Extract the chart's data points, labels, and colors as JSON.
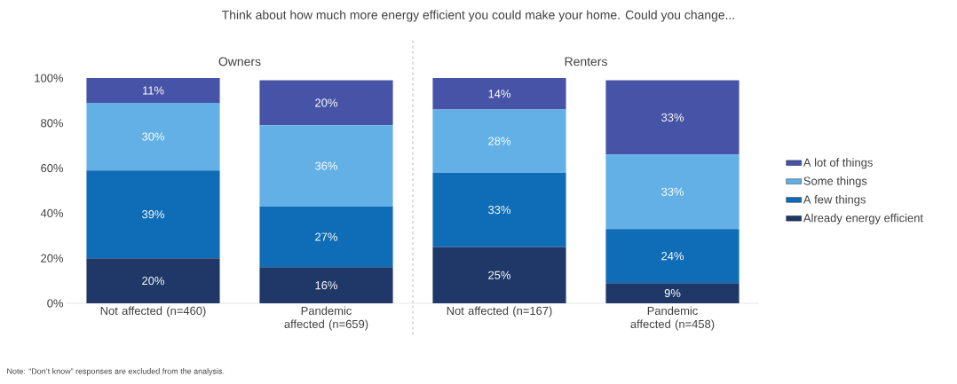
{
  "chart_data": {
    "type": "bar",
    "stacked": true,
    "title": "Think about how much more energy efficient you could make your home. Could you change...",
    "categories": [
      "Not affected (n=460)",
      "Pandemic affected (n=659)",
      "Not affected (n=167)",
      "Pandemic affected (n=458)"
    ],
    "series": [
      {
        "name": "Already energy efficient",
        "color": "#1f3868",
        "values": [
          20,
          16,
          25,
          9
        ],
        "value_labels": [
          "20%",
          "16%",
          "25%",
          "9%"
        ]
      },
      {
        "name": "A few things",
        "color": "#0f6cb6",
        "values": [
          39,
          27,
          33,
          24
        ],
        "value_labels": [
          "39%",
          "27%",
          "33%",
          "24%"
        ]
      },
      {
        "name": "Some things",
        "color": "#62b0e6",
        "values": [
          30,
          36,
          28,
          33
        ],
        "value_labels": [
          "30%",
          "36%",
          "28%",
          "33%"
        ]
      },
      {
        "name": "A lot of things",
        "color": "#4653a6",
        "values": [
          11,
          20,
          14,
          33
        ],
        "value_labels": [
          "11%",
          "20%",
          "14%",
          "33%"
        ]
      }
    ],
    "ylim": [
      0,
      100
    ],
    "yticks": [
      {
        "value": 0,
        "label": "0%"
      },
      {
        "value": 20,
        "label": "20%"
      },
      {
        "value": 40,
        "label": "40%"
      },
      {
        "value": 60,
        "label": "60%"
      },
      {
        "value": 80,
        "label": "80%"
      },
      {
        "value": 100,
        "label": "100%"
      }
    ],
    "annotations": [
      "Owners",
      "Renters",
      "Note: “Don’t know” responses are excluded from the analysis."
    ],
    "legend": "right",
    "grid": false
  }
}
